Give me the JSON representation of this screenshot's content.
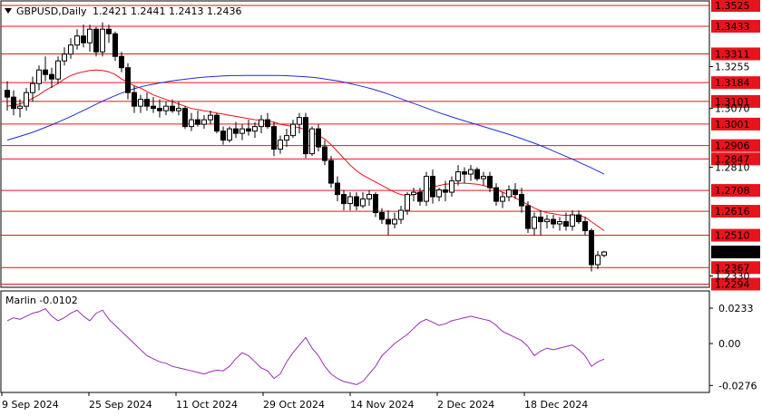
{
  "header": {
    "symbol": "GBPUSD,Daily",
    "ohlc": "1.2421  1.2441  1.2413  1.2436"
  },
  "indicator": {
    "name": "Marlin -0.0102"
  },
  "colors": {
    "level_line": "#e8141d",
    "ma_fast": "#e8141d",
    "ma_slow": "#1f2ed1",
    "oscillator": "#9b2bb4",
    "current_price": "#000000"
  },
  "chart_data": [
    {
      "type": "candlestick",
      "ylim": [
        1.228,
        1.3545
      ],
      "price_levels": [
        "1.3525",
        "1.3433",
        "1.3311",
        "1.3184",
        "1.3101",
        "1.3001",
        "1.2906",
        "1.2847",
        "1.2708",
        "1.2616",
        "1.2510",
        "1.2367",
        "1.2294"
      ],
      "axis_ticks": [
        "1.3255",
        "1.3070",
        "1.2810",
        "1.2330"
      ],
      "current_price": "1.2436",
      "x_labels": [
        "9 Sep 2024",
        "25 Sep 2024",
        "11 Oct 2024",
        "29 Oct 2024",
        "14 Nov 2024",
        "2 Dec 2024",
        "18 Dec 2024"
      ],
      "ohlc": [
        [
          1.315,
          1.319,
          1.306,
          1.312
        ],
        [
          1.312,
          1.315,
          1.304,
          1.307
        ],
        [
          1.307,
          1.311,
          1.303,
          1.308
        ],
        [
          1.308,
          1.316,
          1.306,
          1.314
        ],
        [
          1.314,
          1.321,
          1.31,
          1.318
        ],
        [
          1.318,
          1.326,
          1.315,
          1.324
        ],
        [
          1.324,
          1.33,
          1.319,
          1.322
        ],
        [
          1.322,
          1.325,
          1.316,
          1.32
        ],
        [
          1.32,
          1.33,
          1.318,
          1.328
        ],
        [
          1.328,
          1.334,
          1.326,
          1.331
        ],
        [
          1.331,
          1.338,
          1.329,
          1.335
        ],
        [
          1.335,
          1.342,
          1.333,
          1.339
        ],
        [
          1.339,
          1.344,
          1.334,
          1.336
        ],
        [
          1.336,
          1.344,
          1.332,
          1.342
        ],
        [
          1.342,
          1.343,
          1.33,
          1.332
        ],
        [
          1.332,
          1.345,
          1.33,
          1.342
        ],
        [
          1.342,
          1.344,
          1.336,
          1.34
        ],
        [
          1.34,
          1.341,
          1.328,
          1.33
        ],
        [
          1.33,
          1.332,
          1.323,
          1.325
        ],
        [
          1.325,
          1.327,
          1.311,
          1.314
        ],
        [
          1.314,
          1.317,
          1.305,
          1.308
        ],
        [
          1.308,
          1.313,
          1.305,
          1.311
        ],
        [
          1.311,
          1.314,
          1.306,
          1.308
        ],
        [
          1.308,
          1.312,
          1.305,
          1.307
        ],
        [
          1.307,
          1.311,
          1.303,
          1.306
        ],
        [
          1.306,
          1.31,
          1.304,
          1.308
        ],
        [
          1.308,
          1.311,
          1.305,
          1.306
        ],
        [
          1.306,
          1.31,
          1.304,
          1.307
        ],
        [
          1.307,
          1.308,
          1.298,
          1.299
        ],
        [
          1.299,
          1.305,
          1.297,
          1.302
        ],
        [
          1.302,
          1.306,
          1.299,
          1.3
        ],
        [
          1.3,
          1.304,
          1.298,
          1.302
        ],
        [
          1.302,
          1.306,
          1.3,
          1.304
        ],
        [
          1.304,
          1.305,
          1.296,
          1.297
        ],
        [
          1.297,
          1.299,
          1.291,
          1.293
        ],
        [
          1.293,
          1.299,
          1.292,
          1.298
        ],
        [
          1.298,
          1.301,
          1.294,
          1.296
        ],
        [
          1.296,
          1.3,
          1.293,
          1.298
        ],
        [
          1.298,
          1.302,
          1.295,
          1.297
        ],
        [
          1.297,
          1.301,
          1.294,
          1.299
        ],
        [
          1.299,
          1.304,
          1.296,
          1.302
        ],
        [
          1.302,
          1.305,
          1.298,
          1.299
        ],
        [
          1.299,
          1.301,
          1.286,
          1.289
        ],
        [
          1.289,
          1.295,
          1.287,
          1.293
        ],
        [
          1.293,
          1.298,
          1.29,
          1.295
        ],
        [
          1.295,
          1.302,
          1.294,
          1.3
        ],
        [
          1.3,
          1.305,
          1.296,
          1.303
        ],
        [
          1.303,
          1.305,
          1.285,
          1.287
        ],
        [
          1.287,
          1.299,
          1.286,
          1.298
        ],
        [
          1.298,
          1.3,
          1.288,
          1.29
        ],
        [
          1.29,
          1.293,
          1.282,
          1.284
        ],
        [
          1.284,
          1.286,
          1.272,
          1.274
        ],
        [
          1.274,
          1.277,
          1.266,
          1.269
        ],
        [
          1.269,
          1.271,
          1.262,
          1.265
        ],
        [
          1.265,
          1.27,
          1.262,
          1.268
        ],
        [
          1.268,
          1.27,
          1.262,
          1.264
        ],
        [
          1.264,
          1.27,
          1.263,
          1.267
        ],
        [
          1.267,
          1.271,
          1.264,
          1.269
        ],
        [
          1.269,
          1.27,
          1.259,
          1.261
        ],
        [
          1.261,
          1.263,
          1.256,
          1.258
        ],
        [
          1.258,
          1.262,
          1.251,
          1.256
        ],
        [
          1.256,
          1.261,
          1.254,
          1.258
        ],
        [
          1.258,
          1.264,
          1.256,
          1.262
        ],
        [
          1.262,
          1.27,
          1.26,
          1.269
        ],
        [
          1.269,
          1.272,
          1.266,
          1.27
        ],
        [
          1.27,
          1.272,
          1.264,
          1.266
        ],
        [
          1.266,
          1.279,
          1.264,
          1.277
        ],
        [
          1.277,
          1.28,
          1.265,
          1.268
        ],
        [
          1.268,
          1.272,
          1.266,
          1.271
        ],
        [
          1.271,
          1.275,
          1.266,
          1.27
        ],
        [
          1.27,
          1.277,
          1.268,
          1.275
        ],
        [
          1.275,
          1.282,
          1.273,
          1.279
        ],
        [
          1.279,
          1.281,
          1.274,
          1.278
        ],
        [
          1.278,
          1.282,
          1.275,
          1.28
        ],
        [
          1.28,
          1.281,
          1.275,
          1.276
        ],
        [
          1.276,
          1.279,
          1.273,
          1.277
        ],
        [
          1.277,
          1.279,
          1.27,
          1.272
        ],
        [
          1.272,
          1.274,
          1.264,
          1.266
        ],
        [
          1.266,
          1.27,
          1.263,
          1.268
        ],
        [
          1.268,
          1.273,
          1.266,
          1.271
        ],
        [
          1.271,
          1.274,
          1.267,
          1.269
        ],
        [
          1.269,
          1.272,
          1.261,
          1.264
        ],
        [
          1.264,
          1.266,
          1.252,
          1.254
        ],
        [
          1.254,
          1.261,
          1.251,
          1.259
        ],
        [
          1.259,
          1.262,
          1.251,
          1.257
        ],
        [
          1.257,
          1.26,
          1.254,
          1.258
        ],
        [
          1.258,
          1.26,
          1.254,
          1.256
        ],
        [
          1.256,
          1.259,
          1.253,
          1.257
        ],
        [
          1.257,
          1.261,
          1.253,
          1.255
        ],
        [
          1.255,
          1.262,
          1.253,
          1.26
        ],
        [
          1.26,
          1.262,
          1.256,
          1.257
        ],
        [
          1.257,
          1.259,
          1.251,
          1.253
        ],
        [
          1.253,
          1.254,
          1.235,
          1.238
        ],
        [
          1.238,
          1.244,
          1.236,
          1.2421
        ],
        [
          1.2421,
          1.2441,
          1.2413,
          1.2436
        ]
      ],
      "ma_fast": [
        1.308,
        1.3085,
        1.309,
        1.31,
        1.3115,
        1.313,
        1.315,
        1.3165,
        1.318,
        1.32,
        1.3215,
        1.3225,
        1.3232,
        1.3238,
        1.324,
        1.3238,
        1.3232,
        1.322,
        1.32,
        1.3185,
        1.317,
        1.316,
        1.3145,
        1.313,
        1.312,
        1.311,
        1.31,
        1.309,
        1.308,
        1.307,
        1.3065,
        1.306,
        1.3055,
        1.305,
        1.3045,
        1.304,
        1.3035,
        1.303,
        1.3025,
        1.302,
        1.3018,
        1.3015,
        1.301,
        1.3,
        1.2995,
        1.299,
        1.2985,
        1.2975,
        1.2965,
        1.295,
        1.2935,
        1.291,
        1.288,
        1.285,
        1.282,
        1.2795,
        1.2775,
        1.276,
        1.2745,
        1.273,
        1.2715,
        1.27,
        1.269,
        1.2685,
        1.269,
        1.27,
        1.2712,
        1.2722,
        1.273,
        1.2735,
        1.2738,
        1.274,
        1.274,
        1.2738,
        1.2735,
        1.273,
        1.2722,
        1.2712,
        1.27,
        1.269,
        1.2675,
        1.266,
        1.2645,
        1.263,
        1.2618,
        1.261,
        1.2605,
        1.26,
        1.2598,
        1.26,
        1.2598,
        1.259,
        1.257,
        1.255,
        1.253
      ],
      "ma_slow_start_index": 0,
      "ma_slow": [
        1.293,
        1.294,
        1.295,
        1.296,
        1.2972,
        1.2985,
        1.2998,
        1.3012,
        1.3027,
        1.3042,
        1.3058,
        1.3074,
        1.309,
        1.3106,
        1.312,
        1.3134,
        1.3146,
        1.3157,
        1.3166,
        1.3174,
        1.318,
        1.3186,
        1.3191,
        1.3196,
        1.32,
        1.3204,
        1.3207,
        1.321,
        1.3212,
        1.3214,
        1.3215,
        1.3215,
        1.3216,
        1.3216,
        1.3216,
        1.3216,
        1.3216,
        1.3215,
        1.3214,
        1.3212,
        1.321,
        1.3207,
        1.3203,
        1.3198,
        1.3193,
        1.3187,
        1.318,
        1.3172,
        1.3164,
        1.3155,
        1.3145,
        1.3134,
        1.3122,
        1.311,
        1.3098,
        1.3086,
        1.3074,
        1.3062,
        1.305,
        1.3039,
        1.3028,
        1.3018,
        1.3008,
        1.2998,
        1.2988,
        1.2978,
        1.2968,
        1.2958,
        1.2947,
        1.2936,
        1.2924,
        1.2912,
        1.2899,
        1.2885,
        1.2871,
        1.2857,
        1.2842,
        1.2827,
        1.2812,
        1.2796,
        1.278
      ],
      "oscillator": [
        0.015,
        0.017,
        0.016,
        0.018,
        0.02,
        0.021,
        0.023,
        0.018,
        0.015,
        0.017,
        0.02,
        0.022,
        0.018,
        0.015,
        0.02,
        0.022,
        0.016,
        0.012,
        0.008,
        0.004,
        0.0,
        -0.004,
        -0.008,
        -0.01,
        -0.012,
        -0.013,
        -0.015,
        -0.016,
        -0.017,
        -0.018,
        -0.019,
        -0.02,
        -0.0185,
        -0.0175,
        -0.018,
        -0.015,
        -0.01,
        -0.006,
        -0.008,
        -0.012,
        -0.016,
        -0.018,
        -0.023,
        -0.02,
        -0.012,
        -0.006,
        -0.001,
        0.004,
        -0.003,
        -0.008,
        -0.015,
        -0.02,
        -0.023,
        -0.025,
        -0.026,
        -0.027,
        -0.025,
        -0.02,
        -0.015,
        -0.008,
        -0.004,
        0.0,
        0.003,
        0.006,
        0.01,
        0.014,
        0.016,
        0.014,
        0.012,
        0.013,
        0.015,
        0.016,
        0.017,
        0.018,
        0.017,
        0.016,
        0.015,
        0.012,
        0.008,
        0.006,
        0.004,
        0.002,
        -0.002,
        -0.008,
        -0.005,
        -0.003,
        -0.004,
        -0.003,
        -0.002,
        -0.001,
        -0.004,
        -0.008,
        -0.015,
        -0.012,
        -0.0102
      ],
      "osc_levels": [
        "0.0233",
        "0.00",
        "-0.0276"
      ],
      "osc_ylim": [
        -0.031,
        0.0275
      ]
    }
  ]
}
